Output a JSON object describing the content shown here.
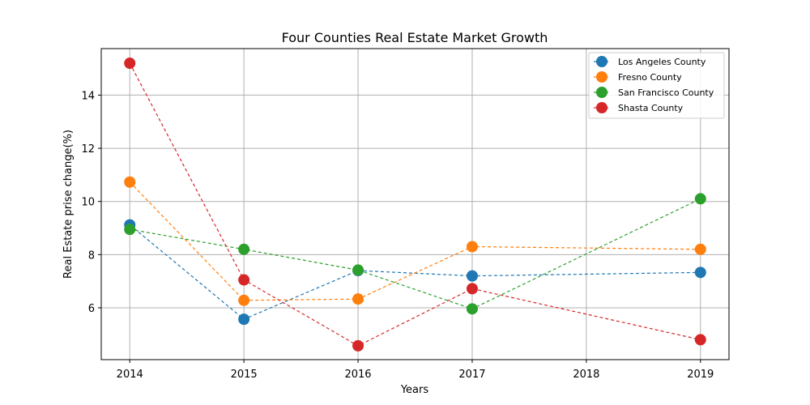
{
  "chart_data": {
    "type": "line",
    "title": "Four Counties Real Estate Market Growth",
    "xlabel": "Years",
    "ylabel": "Real Estate prise change(%)",
    "x": [
      2014,
      2015,
      2016,
      2017,
      2019
    ],
    "xlim": [
      2013.75,
      2019.25
    ],
    "ylim": [
      4.05,
      15.75
    ],
    "xticks": [
      2014,
      2015,
      2016,
      2017,
      2018,
      2019
    ],
    "yticks": [
      6,
      8,
      10,
      12,
      14
    ],
    "grid": true,
    "legend_position": "top-right",
    "line_style": "dashed",
    "marker": "circle",
    "series": [
      {
        "name": "Los Angeles County",
        "color": "#1f77b4",
        "values": [
          9.12,
          5.57,
          7.4,
          7.2,
          7.33
        ]
      },
      {
        "name": "Fresno County",
        "color": "#ff7f0e",
        "values": [
          10.73,
          6.28,
          6.33,
          8.3,
          8.2
        ]
      },
      {
        "name": "San Francisco County",
        "color": "#2ca02c",
        "values": [
          8.95,
          8.2,
          7.42,
          5.96,
          10.1
        ]
      },
      {
        "name": "Shasta County",
        "color": "#d62728",
        "values": [
          15.2,
          7.05,
          4.57,
          6.72,
          4.8
        ]
      }
    ]
  }
}
